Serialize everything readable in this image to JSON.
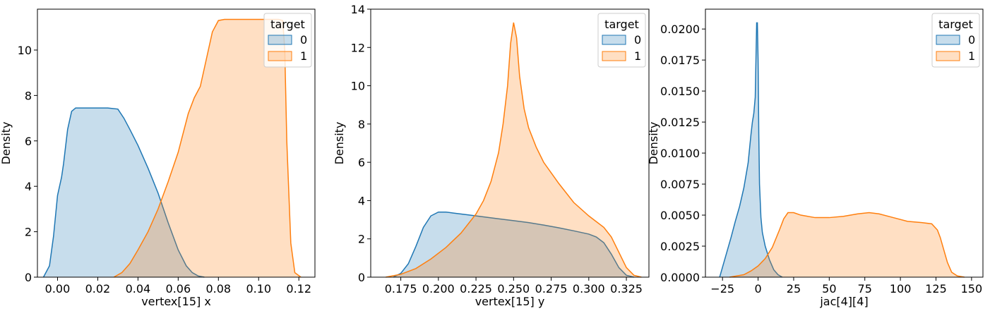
{
  "colors": {
    "series_0": "#1f77b4",
    "series_1": "#ff7f0e",
    "fill_alpha": 0.25
  },
  "chart_data": [
    {
      "type": "area",
      "xlabel": "vertex[15] x",
      "ylabel": "Density",
      "xlim": [
        -0.01,
        0.128
      ],
      "ylim": [
        0,
        11.8
      ],
      "xticks": [
        0.0,
        0.02,
        0.04,
        0.06,
        0.08,
        0.1,
        0.12
      ],
      "xtick_labels": [
        "0.00",
        "0.02",
        "0.04",
        "0.06",
        "0.08",
        "0.10",
        "0.12"
      ],
      "yticks": [
        0,
        2,
        4,
        6,
        8,
        10
      ],
      "ytick_labels": [
        "0",
        "2",
        "4",
        "6",
        "8",
        "10"
      ],
      "legend": {
        "title": "target",
        "placement": "top-right"
      },
      "series": [
        {
          "name": "0",
          "x": [
            -0.007,
            -0.004,
            -0.002,
            0.0,
            0.002,
            0.003,
            0.005,
            0.007,
            0.009,
            0.012,
            0.016,
            0.02,
            0.025,
            0.03,
            0.033,
            0.036,
            0.04,
            0.045,
            0.05,
            0.055,
            0.06,
            0.064,
            0.067,
            0.07,
            0.073
          ],
          "y": [
            0.0,
            0.5,
            1.8,
            3.6,
            4.4,
            5.0,
            6.5,
            7.3,
            7.45,
            7.45,
            7.45,
            7.45,
            7.45,
            7.4,
            7.0,
            6.5,
            5.8,
            4.8,
            3.7,
            2.4,
            1.2,
            0.5,
            0.2,
            0.05,
            0.0
          ]
        },
        {
          "name": "1",
          "x": [
            0.028,
            0.032,
            0.036,
            0.04,
            0.045,
            0.05,
            0.055,
            0.06,
            0.065,
            0.068,
            0.071,
            0.074,
            0.077,
            0.08,
            0.083,
            0.086,
            0.09,
            0.095,
            0.1,
            0.105,
            0.11,
            0.112,
            0.113,
            0.114,
            0.116,
            0.118,
            0.121
          ],
          "y": [
            0.0,
            0.2,
            0.6,
            1.2,
            2.0,
            3.0,
            4.2,
            5.5,
            7.2,
            7.9,
            8.4,
            9.6,
            10.8,
            11.3,
            11.35,
            11.35,
            11.35,
            11.35,
            11.35,
            11.35,
            11.35,
            11.3,
            10.0,
            6.0,
            1.5,
            0.2,
            0.0
          ]
        }
      ]
    },
    {
      "type": "area",
      "xlabel": "vertex[15] y",
      "ylabel": "Density",
      "xlim": [
        0.155,
        0.34
      ],
      "ylim": [
        0,
        14
      ],
      "xticks": [
        0.175,
        0.2,
        0.225,
        0.25,
        0.275,
        0.3,
        0.325
      ],
      "xtick_labels": [
        "0.175",
        "0.200",
        "0.225",
        "0.250",
        "0.275",
        "0.300",
        "0.325"
      ],
      "yticks": [
        0,
        2,
        4,
        6,
        8,
        10,
        12,
        14
      ],
      "ytick_labels": [
        "0",
        "2",
        "4",
        "6",
        "8",
        "10",
        "12",
        "14"
      ],
      "legend": {
        "title": "target",
        "placement": "top-right"
      },
      "series": [
        {
          "name": "0",
          "x": [
            0.17,
            0.175,
            0.18,
            0.185,
            0.19,
            0.195,
            0.2,
            0.205,
            0.21,
            0.22,
            0.23,
            0.24,
            0.25,
            0.26,
            0.27,
            0.28,
            0.29,
            0.3,
            0.305,
            0.31,
            0.315,
            0.32,
            0.325,
            0.33
          ],
          "y": [
            0.0,
            0.2,
            0.7,
            1.6,
            2.6,
            3.2,
            3.4,
            3.4,
            3.35,
            3.25,
            3.15,
            3.05,
            2.95,
            2.85,
            2.72,
            2.58,
            2.42,
            2.25,
            2.1,
            1.8,
            1.2,
            0.5,
            0.1,
            0.0
          ]
        },
        {
          "name": "1",
          "x": [
            0.165,
            0.175,
            0.185,
            0.195,
            0.205,
            0.215,
            0.225,
            0.23,
            0.235,
            0.24,
            0.243,
            0.246,
            0.248,
            0.25,
            0.252,
            0.254,
            0.257,
            0.26,
            0.265,
            0.27,
            0.28,
            0.29,
            0.3,
            0.31,
            0.315,
            0.32,
            0.325,
            0.33,
            0.335
          ],
          "y": [
            0.0,
            0.15,
            0.45,
            0.95,
            1.55,
            2.3,
            3.3,
            4.0,
            5.0,
            6.5,
            8.0,
            10.0,
            12.2,
            13.3,
            12.5,
            10.5,
            8.8,
            7.8,
            6.8,
            6.0,
            4.9,
            3.9,
            3.2,
            2.6,
            2.1,
            1.3,
            0.5,
            0.1,
            0.0
          ]
        }
      ]
    },
    {
      "type": "area",
      "xlabel": "jac[4][4]",
      "ylabel": "Density",
      "xlim": [
        -37,
        158
      ],
      "ylim": [
        0,
        0.0216
      ],
      "xticks": [
        -25,
        0,
        25,
        50,
        75,
        100,
        125,
        150
      ],
      "xtick_labels": [
        "−25",
        "0",
        "25",
        "50",
        "75",
        "100",
        "125",
        "150"
      ],
      "yticks": [
        0.0,
        0.0025,
        0.005,
        0.0075,
        0.01,
        0.0125,
        0.015,
        0.0175,
        0.02
      ],
      "ytick_labels": [
        "0.0000",
        "0.0025",
        "0.0050",
        "0.0075",
        "0.0100",
        "0.0125",
        "0.0150",
        "0.0175",
        "0.0200"
      ],
      "legend": {
        "title": "target",
        "placement": "top-right"
      },
      "series": [
        {
          "name": "0",
          "x": [
            -27,
            -25,
            -22,
            -19,
            -16,
            -13,
            -10,
            -7,
            -5,
            -4,
            -3,
            -2,
            -1.5,
            -1,
            -0.5,
            0,
            0.5,
            1,
            2,
            3,
            5,
            8,
            11,
            14,
            17
          ],
          "y": [
            0.0,
            0.0008,
            0.002,
            0.0032,
            0.0045,
            0.0057,
            0.0072,
            0.0092,
            0.0115,
            0.0125,
            0.0132,
            0.0145,
            0.0175,
            0.0205,
            0.0205,
            0.0175,
            0.0115,
            0.0075,
            0.0048,
            0.0036,
            0.0025,
            0.0014,
            0.0006,
            0.0002,
            0.0
          ]
        },
        {
          "name": "1",
          "x": [
            -20,
            -10,
            -5,
            0,
            5,
            10,
            15,
            18,
            21,
            25,
            30,
            40,
            50,
            60,
            70,
            78,
            85,
            95,
            105,
            115,
            122,
            126,
            128,
            130,
            133,
            136,
            140,
            145
          ],
          "y": [
            0.0,
            0.0002,
            0.0005,
            0.0009,
            0.0015,
            0.0024,
            0.0038,
            0.0047,
            0.0052,
            0.0052,
            0.005,
            0.0048,
            0.0048,
            0.0049,
            0.0051,
            0.0052,
            0.0051,
            0.0048,
            0.0045,
            0.0044,
            0.0043,
            0.0038,
            0.0032,
            0.0024,
            0.0012,
            0.0004,
            0.0001,
            0.0
          ]
        }
      ]
    }
  ]
}
